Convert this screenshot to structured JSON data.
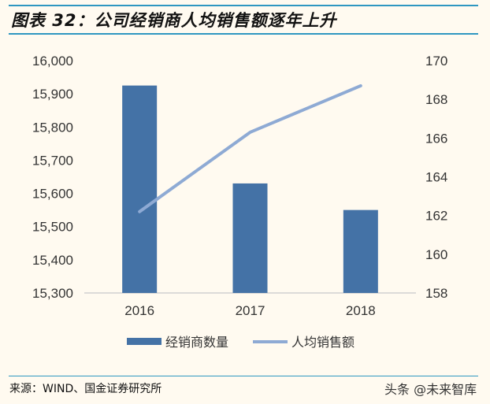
{
  "title": "图表 32：公司经销商人均销售额逐年上升",
  "source": "来源：WIND、国金证券研究所",
  "watermark": "头条 @未来智库",
  "chart_data": {
    "type": "bar+line",
    "categories": [
      "2016",
      "2017",
      "2018"
    ],
    "series": [
      {
        "name": "经销商数量",
        "type": "bar",
        "axis": "left",
        "values": [
          15925,
          15630,
          15550
        ],
        "color": "#4472a6"
      },
      {
        "name": "人均销售额",
        "type": "line",
        "axis": "right",
        "values": [
          162.2,
          166.3,
          168.7
        ],
        "color": "#8eaad4"
      }
    ],
    "y_left": {
      "range": [
        15300,
        16000
      ],
      "ticks": [
        "15,300",
        "15,400",
        "15,500",
        "15,600",
        "15,700",
        "15,800",
        "15,900",
        "16,000"
      ]
    },
    "y_right": {
      "range": [
        158,
        170
      ],
      "ticks": [
        "158",
        "160",
        "162",
        "164",
        "166",
        "168",
        "170"
      ]
    },
    "grid": false,
    "legend": "bottom"
  }
}
